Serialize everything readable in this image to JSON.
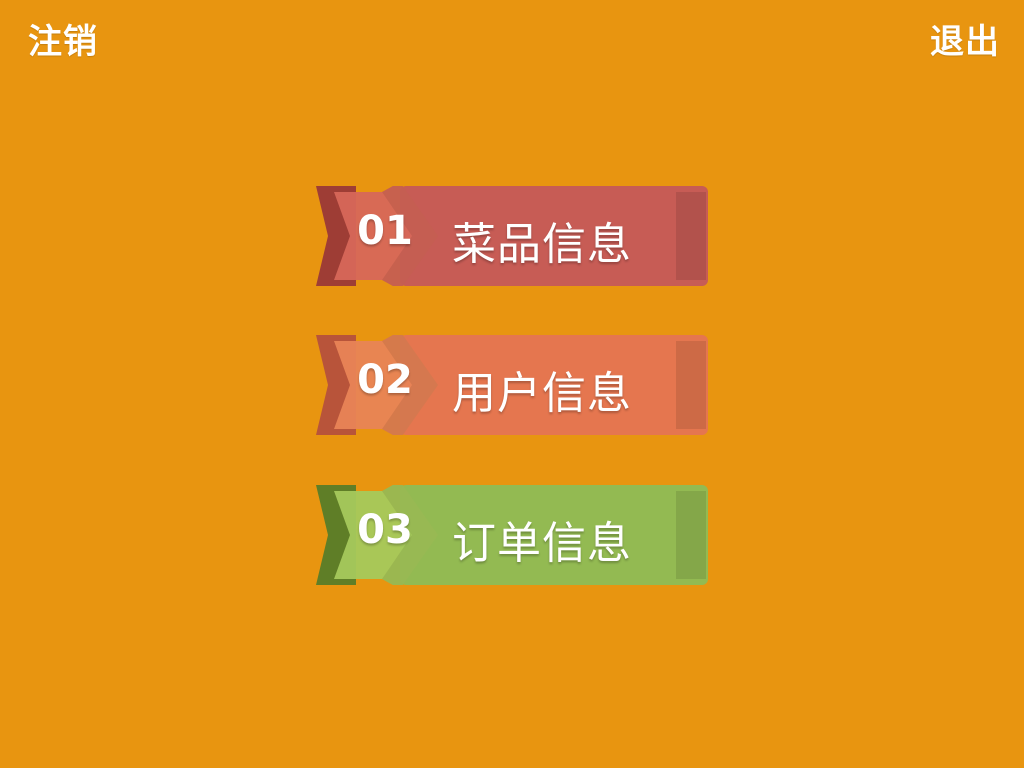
{
  "header": {
    "logout_label": "注销",
    "exit_label": "退出"
  },
  "menu": {
    "items": [
      {
        "number": "01",
        "label": "菜品信息",
        "color_main": "#C75C55",
        "color_dark": "#9E3D35",
        "color_arrow": "#D7675A"
      },
      {
        "number": "02",
        "label": "用户信息",
        "color_main": "#E5764F",
        "color_dark": "#B8543A",
        "color_arrow": "#E88456"
      },
      {
        "number": "03",
        "label": "订单信息",
        "color_main": "#93BA52",
        "color_dark": "#5F7E27",
        "color_arrow": "#A5C95C"
      }
    ]
  }
}
